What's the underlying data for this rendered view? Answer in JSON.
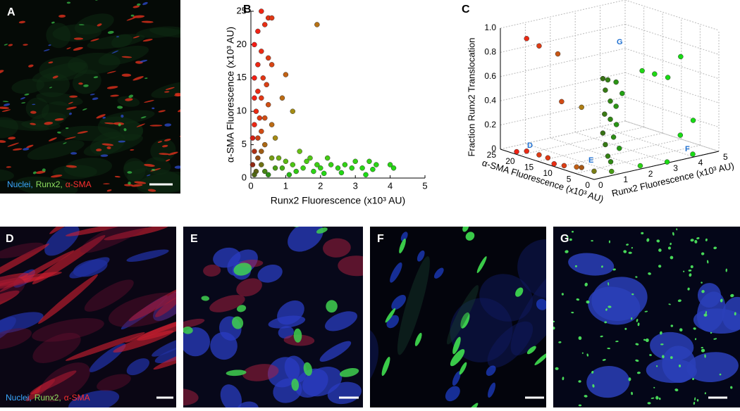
{
  "panels": {
    "a": "A",
    "b": "B",
    "c": "C",
    "d": "D",
    "e": "E",
    "f": "F",
    "g": "G"
  },
  "legend_a": [
    "Nuclei,",
    "Runx2,",
    "α-SMA"
  ],
  "legend_d": [
    "Nuclei,",
    "Runx2,",
    "α-SMA"
  ],
  "chart_data": [
    {
      "type": "scatter",
      "xlabel": "Runx2 Fluorescence (x10³ AU)",
      "ylabel": "α-SMA Fluorescence (x10³ AU)",
      "xlim": [
        0,
        5
      ],
      "ylim": [
        0,
        25
      ],
      "xticks": [
        0,
        1,
        2,
        3,
        4,
        5
      ],
      "yticks": [
        0,
        5,
        10,
        15,
        20,
        25
      ],
      "x": [
        0.3,
        0.5,
        0.6,
        0.2,
        0.4,
        0.1,
        0.3,
        0.5,
        0.2,
        0.6,
        0.1,
        0.35,
        0.45,
        0.2,
        0.3,
        0.1,
        0.5,
        0.15,
        0.25,
        0.4,
        0.1,
        0.3,
        0.6,
        0.2,
        0.05,
        0.4,
        0.1,
        0.3,
        0.2,
        0.6,
        0.05,
        0.3,
        0.15,
        0.4,
        0.1,
        0.5,
        1.9,
        1.0,
        1.2,
        0.9,
        0.7,
        0.8,
        1.0,
        1.2,
        0.9,
        1.4,
        1.6,
        1.3,
        1.1,
        0.7,
        1.7,
        1.9,
        2.0,
        2.2,
        2.3,
        2.5,
        2.7,
        2.9,
        3.0,
        3.2,
        3.4,
        3.6,
        3.3,
        2.6,
        3.5,
        4.0,
        4.1,
        1.5,
        1.8,
        2.1
      ],
      "y": [
        25,
        24,
        24,
        22,
        23,
        20,
        19,
        18,
        17,
        17,
        15,
        15,
        14,
        13,
        12,
        12,
        11,
        10,
        9,
        9,
        8,
        7,
        8,
        6,
        6,
        5,
        4,
        4,
        3,
        3,
        2,
        2,
        1,
        1,
        0.5,
        0.5,
        23,
        15.5,
        10,
        12,
        6,
        3,
        2.5,
        2,
        1.5,
        4,
        2.5,
        1,
        0.5,
        1.5,
        3,
        2,
        1.5,
        3,
        2,
        1.5,
        2,
        1.5,
        2.5,
        1.5,
        2.5,
        2,
        0.5,
        0.8,
        1.3,
        2,
        1.5,
        1.5,
        1,
        0.7
      ]
    },
    {
      "type": "scatter3d",
      "zlabel": "Fraction Runx2 Translocation",
      "xlabel": "α-SMA Fluorescence (x10³ AU)",
      "ylabel": "Runx2 Fluorescence (x10³ AU)",
      "xlim": [
        0,
        25
      ],
      "ylim": [
        0,
        5
      ],
      "zlim": [
        0,
        1
      ],
      "xticks": [
        25,
        20,
        15,
        10,
        5,
        0
      ],
      "yticks": [
        0,
        1,
        2,
        3,
        4,
        5
      ],
      "zticks": [
        0,
        0.2,
        0.4,
        0.6,
        0.8,
        {
          "value": 1,
          "label": "1.0"
        }
      ],
      "annotations": [
        "D",
        "E",
        "F",
        "G"
      ],
      "x": [
        22,
        20,
        18,
        15,
        12,
        10,
        8,
        6,
        4,
        2,
        1,
        0.5,
        0.3,
        20,
        18,
        15,
        12,
        10,
        1,
        1,
        0.8,
        1,
        0.5,
        1,
        0.8,
        1.2,
        1,
        0.7,
        1,
        0.8,
        1,
        0.6,
        1,
        0.9,
        0.5,
        0.5,
        0.3,
        0.2,
        0.2,
        0.3
      ],
      "y": [
        0.2,
        0.3,
        0.5,
        0.4,
        0.2,
        0.3,
        0.5,
        0.4,
        0.6,
        1,
        2,
        3,
        4,
        0.3,
        0.5,
        0.8,
        0.5,
        1,
        0.5,
        0.7,
        1,
        0.6,
        1.2,
        0.8,
        1,
        0.6,
        0.8,
        1,
        0.5,
        0.9,
        0.6,
        1.1,
        0.7,
        0.8,
        2,
        2.5,
        3,
        3.5,
        4,
        3.5
      ],
      "z": [
        0,
        0.02,
        0,
        0.01,
        0,
        0,
        0,
        0.02,
        0,
        0,
        0.01,
        0,
        0.02,
        0.95,
        0.9,
        0.85,
        0.5,
        0.45,
        0.8,
        0.78,
        0.75,
        0.7,
        0.65,
        0.6,
        0.55,
        0.5,
        0.45,
        0.4,
        0.35,
        0.3,
        0.25,
        0.2,
        0.15,
        0.1,
        0.8,
        0.75,
        0.7,
        0.85,
        0.3,
        0.2
      ]
    }
  ]
}
